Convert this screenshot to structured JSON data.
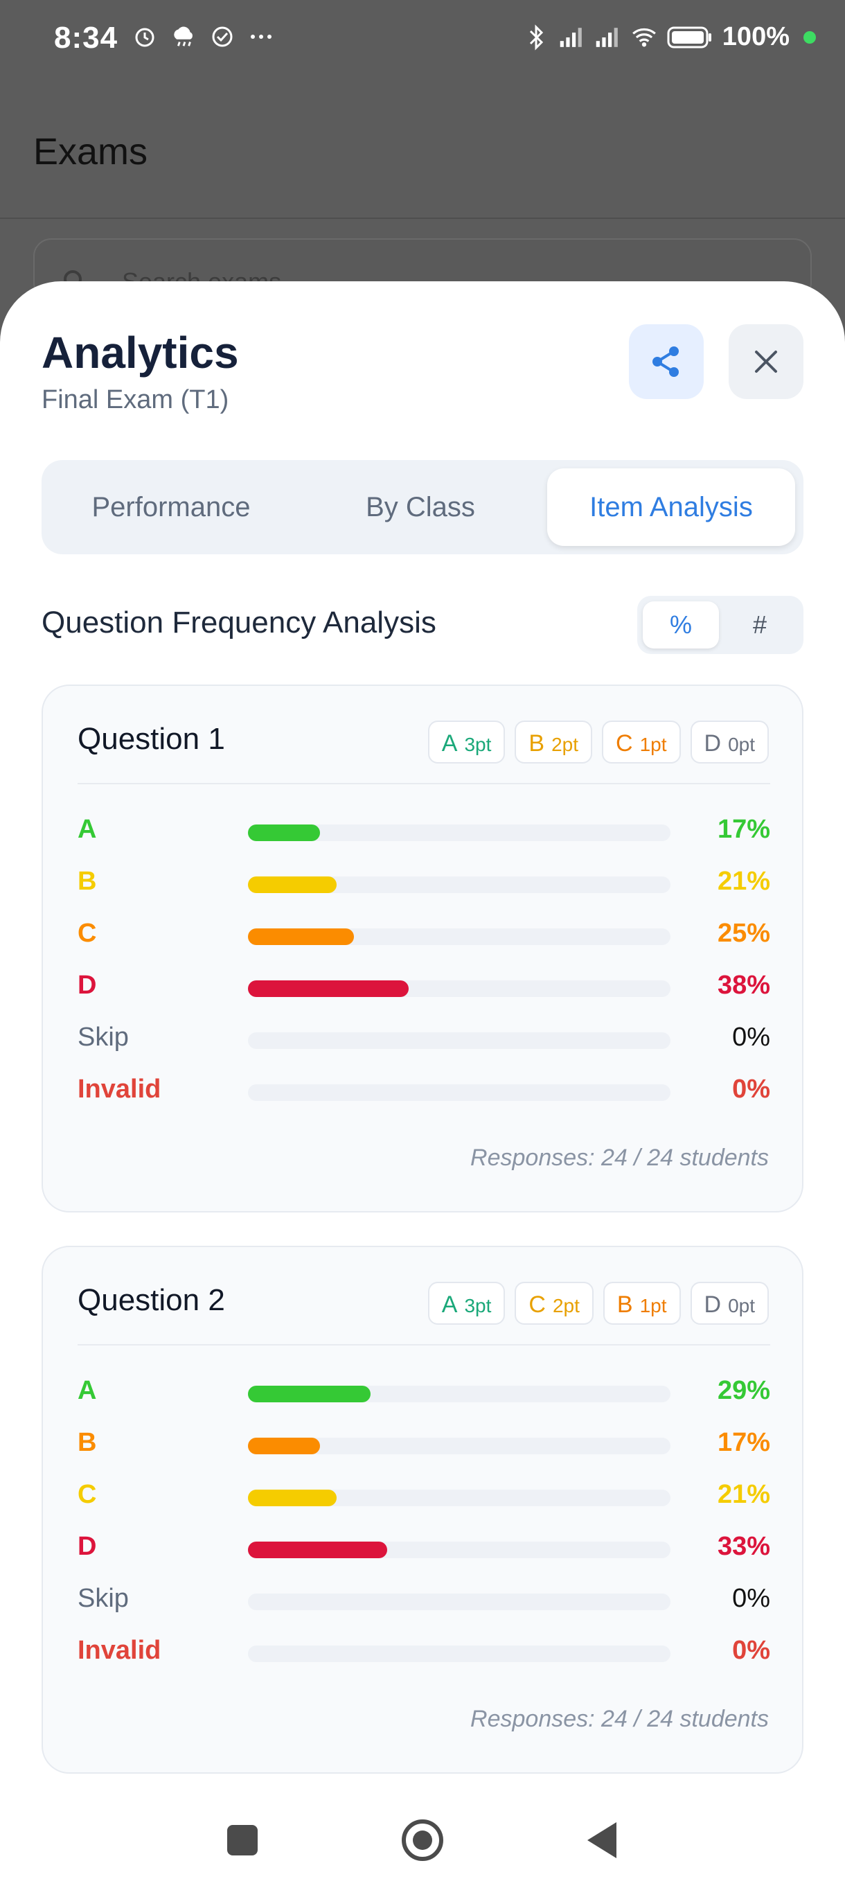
{
  "status_bar": {
    "time": "8:34",
    "battery": "100%",
    "icons": [
      "alarm-icon",
      "weather-icon",
      "check-circle-icon",
      "more-icon",
      "bluetooth-icon",
      "signal-icon",
      "signal-icon",
      "wifi-icon",
      "battery-icon"
    ]
  },
  "background_app": {
    "title": "Exams",
    "search_placeholder": "Search exams"
  },
  "sheet": {
    "title": "Analytics",
    "subtitle": "Final Exam (T1)",
    "tabs": [
      {
        "label": "Performance",
        "active": false
      },
      {
        "label": "By Class",
        "active": false
      },
      {
        "label": "Item Analysis",
        "active": true
      }
    ],
    "section_title": "Question Frequency Analysis",
    "toggle": {
      "percent": "%",
      "count": "#",
      "selected": "%"
    }
  },
  "colors": {
    "A": "#35c935",
    "B_yellow": "#f5cc00",
    "C_orange": "#fb8c00",
    "D": "#dc143c",
    "invalid": "#e0443a",
    "accent": "#2f7de1"
  },
  "questions": [
    {
      "title": "Question 1",
      "chips": [
        {
          "letter": "A",
          "points": "3pt",
          "color": "#1aa879"
        },
        {
          "letter": "B",
          "points": "2pt",
          "color": "#e8a000"
        },
        {
          "letter": "C",
          "points": "1pt",
          "color": "#ef7d00"
        },
        {
          "letter": "D",
          "points": "0pt",
          "color": "#6b7280"
        }
      ],
      "rows": [
        {
          "label": "A",
          "pct": "17%",
          "value": 17,
          "color": "#35c935"
        },
        {
          "label": "B",
          "pct": "21%",
          "value": 21,
          "color": "#f5cc00"
        },
        {
          "label": "C",
          "pct": "25%",
          "value": 25,
          "color": "#fb8c00"
        },
        {
          "label": "D",
          "pct": "38%",
          "value": 38,
          "color": "#dc143c"
        },
        {
          "label": "Skip",
          "pct": "0%",
          "value": 0,
          "color": "#5f6b7d"
        },
        {
          "label": "Invalid",
          "pct": "0%",
          "value": 0,
          "color": "#e0443a"
        }
      ],
      "responses": "Responses: 24 / 24 students"
    },
    {
      "title": "Question 2",
      "chips": [
        {
          "letter": "A",
          "points": "3pt",
          "color": "#1aa879"
        },
        {
          "letter": "C",
          "points": "2pt",
          "color": "#e8a000"
        },
        {
          "letter": "B",
          "points": "1pt",
          "color": "#ef7d00"
        },
        {
          "letter": "D",
          "points": "0pt",
          "color": "#6b7280"
        }
      ],
      "rows": [
        {
          "label": "A",
          "pct": "29%",
          "value": 29,
          "color": "#35c935"
        },
        {
          "label": "B",
          "pct": "17%",
          "value": 17,
          "color": "#fb8c00"
        },
        {
          "label": "C",
          "pct": "21%",
          "value": 21,
          "color": "#f5cc00"
        },
        {
          "label": "D",
          "pct": "33%",
          "value": 33,
          "color": "#dc143c"
        },
        {
          "label": "Skip",
          "pct": "0%",
          "value": 0,
          "color": "#5f6b7d"
        },
        {
          "label": "Invalid",
          "pct": "0%",
          "value": 0,
          "color": "#e0443a"
        }
      ],
      "responses": "Responses: 24 / 24 students"
    }
  ]
}
